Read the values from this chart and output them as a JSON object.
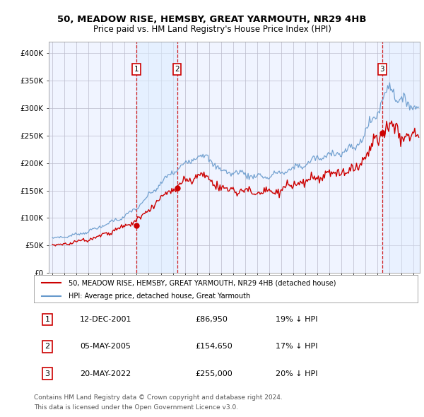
{
  "title1": "50, MEADOW RISE, HEMSBY, GREAT YARMOUTH, NR29 4HB",
  "title2": "Price paid vs. HM Land Registry's House Price Index (HPI)",
  "legend_line1": "50, MEADOW RISE, HEMSBY, GREAT YARMOUTH, NR29 4HB (detached house)",
  "legend_line2": "HPI: Average price, detached house, Great Yarmouth",
  "footer1": "Contains HM Land Registry data © Crown copyright and database right 2024.",
  "footer2": "This data is licensed under the Open Government Licence v3.0.",
  "sales": [
    {
      "date_num": 2001.96,
      "price": 86950,
      "label": "1"
    },
    {
      "date_num": 2005.35,
      "price": 154650,
      "label": "2"
    },
    {
      "date_num": 2022.38,
      "price": 255000,
      "label": "3"
    }
  ],
  "sale_dates_str": [
    "12-DEC-2001",
    "05-MAY-2005",
    "20-MAY-2022"
  ],
  "sale_prices_str": [
    "£86,950",
    "£154,650",
    "£255,000"
  ],
  "sale_hpi_str": [
    "19% ↓ HPI",
    "17% ↓ HPI",
    "20% ↓ HPI"
  ],
  "color_red": "#cc0000",
  "color_blue": "#6699cc",
  "color_vline": "#cc0000",
  "color_shade": "#ddeeff",
  "ylim": [
    0,
    420000
  ],
  "yticks": [
    0,
    50000,
    100000,
    150000,
    200000,
    250000,
    300000,
    350000,
    400000
  ],
  "xlim_left": 1994.7,
  "xlim_right": 2025.5,
  "background_color": "#f0f4ff",
  "grid_color": "#bbbbcc"
}
